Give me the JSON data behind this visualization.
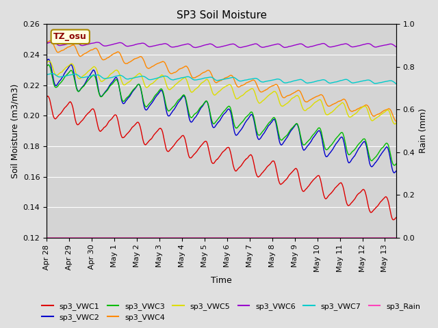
{
  "title": "SP3 Soil Moisture",
  "xlabel": "Time",
  "ylabel_left": "Soil Moisture (m3/m3)",
  "ylabel_right": "Rain (mm)",
  "annotation": "TZ_osu",
  "ylim_left": [
    0.12,
    0.26
  ],
  "ylim_right": [
    0.0,
    1.0
  ],
  "xlim": [
    0,
    15.5
  ],
  "xtick_positions": [
    0,
    1,
    2,
    3,
    4,
    5,
    6,
    7,
    8,
    9,
    10,
    11,
    12,
    13,
    14,
    15
  ],
  "xtick_labels": [
    "Apr 28",
    "Apr 29",
    "Apr 30",
    "May 1",
    "May 2",
    "May 3",
    "May 4",
    "May 5",
    "May 6",
    "May 7",
    "May 8",
    "May 9",
    "May 10",
    "May 11",
    "May 12",
    "May 13"
  ],
  "ytick_positions": [
    0.12,
    0.14,
    0.16,
    0.18,
    0.2,
    0.22,
    0.24,
    0.26
  ],
  "fig_bg": "#e0e0e0",
  "plot_bg": "#d4d4d4",
  "grid_color": "#ffffff",
  "series_colors": {
    "sp3_VWC1": "#dd0000",
    "sp3_VWC2": "#0000cc",
    "sp3_VWC3": "#00bb00",
    "sp3_VWC4": "#ff8800",
    "sp3_VWC5": "#dddd00",
    "sp3_VWC6": "#9900cc",
    "sp3_VWC7": "#00cccc",
    "sp3_Rain": "#ff44bb"
  },
  "series_lw": 1.0,
  "title_fontsize": 11,
  "label_fontsize": 9,
  "tick_fontsize": 8,
  "legend_fontsize": 8
}
